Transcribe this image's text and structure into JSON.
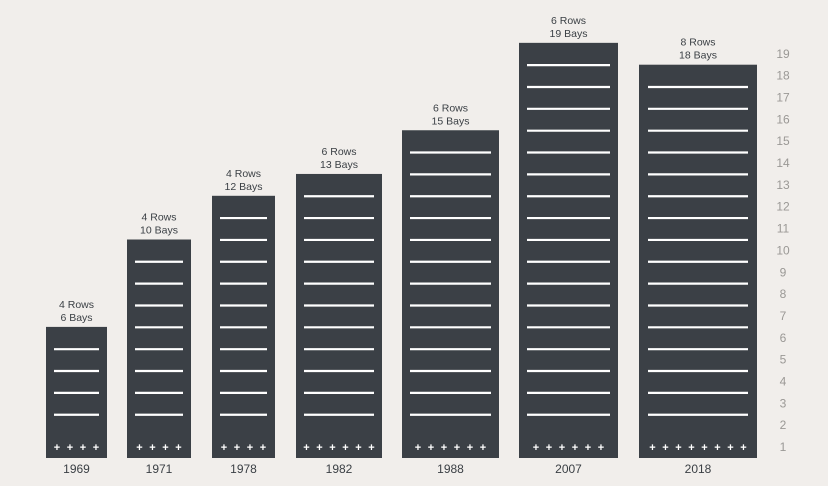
{
  "chart_data": {
    "type": "bar",
    "title": "",
    "xlabel": "",
    "ylabel": "",
    "categories": [
      "1969",
      "1971",
      "1978",
      "1982",
      "1988",
      "2007",
      "2018"
    ],
    "series": [
      {
        "values": [
          6,
          10,
          12,
          13,
          15,
          19,
          18
        ]
      }
    ],
    "rows": [
      4,
      4,
      4,
      6,
      6,
      6,
      8
    ],
    "bar_labels": [
      {
        "rows": "4 Rows",
        "bays": "6 Bays"
      },
      {
        "rows": "4 Rows",
        "bays": "10 Bays"
      },
      {
        "rows": "4 Rows",
        "bays": "12 Bays"
      },
      {
        "rows": "6 Rows",
        "bays": "13 Bays"
      },
      {
        "rows": "6 Rows",
        "bays": "15 Bays"
      },
      {
        "rows": "6 Rows",
        "bays": "19 Bays"
      },
      {
        "rows": "8 Rows",
        "bays": "18 Bays"
      }
    ],
    "y_ticks": [
      1,
      2,
      3,
      4,
      5,
      6,
      7,
      8,
      9,
      10,
      11,
      12,
      13,
      14,
      15,
      16,
      17,
      18,
      19
    ],
    "ylim": [
      0,
      19
    ],
    "y_axis_side": "right",
    "grid": false,
    "marker_glyph": "+",
    "colors": {
      "bar": "#3b4046",
      "line": "#ffffff",
      "background": "#f1eeeb",
      "text": "#3a3f44",
      "tick": "#9a9895"
    }
  }
}
